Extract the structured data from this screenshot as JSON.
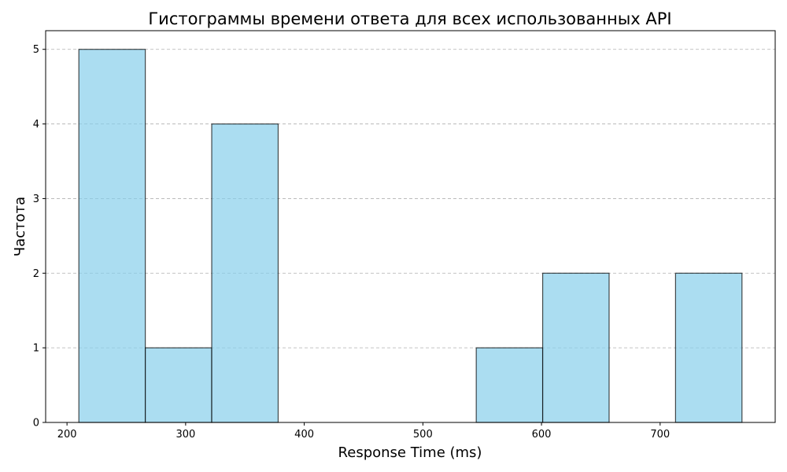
{
  "chart_data": {
    "type": "bar",
    "title": "Гистограммы времени ответа для всех использованных API",
    "xlabel": "Response Time (ms)",
    "ylabel": "Частота",
    "bins": [
      {
        "start": 210,
        "end": 266,
        "count": 5
      },
      {
        "start": 266,
        "end": 322,
        "count": 1
      },
      {
        "start": 322,
        "end": 378,
        "count": 4
      },
      {
        "start": 378,
        "end": 434,
        "count": 0
      },
      {
        "start": 434,
        "end": 490,
        "count": 0
      },
      {
        "start": 490,
        "end": 545,
        "count": 0
      },
      {
        "start": 545,
        "end": 601,
        "count": 1
      },
      {
        "start": 601,
        "end": 657,
        "count": 2
      },
      {
        "start": 657,
        "end": 713,
        "count": 0
      },
      {
        "start": 713,
        "end": 769,
        "count": 2
      }
    ],
    "xlim": [
      182,
      797
    ],
    "ylim": [
      0,
      5.25
    ],
    "xticks": [
      "200",
      "300",
      "400",
      "500",
      "600",
      "700"
    ],
    "yticks": [
      "0",
      "1",
      "2",
      "3",
      "4",
      "5"
    ],
    "grid": "y-dashed",
    "colors": {
      "bar_fill": "#87ceeb",
      "bar_edge": "#000000",
      "grid": "#b0b0b0"
    }
  }
}
